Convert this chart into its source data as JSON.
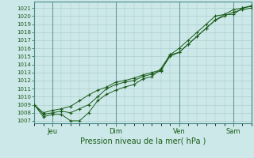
{
  "title": "Pression niveau de la mer( hPa )",
  "ylabel_ticks": [
    1007,
    1008,
    1009,
    1010,
    1011,
    1012,
    1013,
    1014,
    1015,
    1016,
    1017,
    1018,
    1019,
    1020,
    1021
  ],
  "ylim": [
    1006.7,
    1021.8
  ],
  "x_tick_labels": [
    "Jeu",
    "Dim",
    "Ven",
    "Sam"
  ],
  "x_tick_positions": [
    8,
    36,
    64,
    88
  ],
  "xlim": [
    0,
    96
  ],
  "background_color": "#cce8e8",
  "grid_color": "#a8c8c8",
  "day_line_color": "#6a9a9a",
  "line_color": "#1a5c1a",
  "marker_color": "#1a5c1a",
  "line1_x": [
    0,
    4,
    8,
    12,
    16,
    20,
    24,
    28,
    32,
    36,
    40,
    44,
    48,
    52,
    56,
    60,
    64,
    68,
    72,
    76,
    80,
    84,
    88,
    92,
    96
  ],
  "line1_y": [
    1009.0,
    1007.5,
    1007.8,
    1007.8,
    1007.0,
    1007.0,
    1008.0,
    1009.5,
    1010.3,
    1010.8,
    1011.2,
    1011.5,
    1012.2,
    1012.5,
    1013.5,
    1015.2,
    1015.5,
    1016.5,
    1017.5,
    1018.5,
    1019.5,
    1020.2,
    1020.2,
    1021.0,
    1021.2
  ],
  "line2_x": [
    0,
    4,
    8,
    12,
    16,
    20,
    24,
    28,
    32,
    36,
    40,
    44,
    48,
    52,
    56,
    60,
    64,
    68,
    72,
    76,
    80,
    84,
    88,
    92,
    96
  ],
  "line2_y": [
    1009.0,
    1008.0,
    1008.3,
    1008.5,
    1008.8,
    1009.5,
    1010.2,
    1010.8,
    1011.2,
    1011.8,
    1012.0,
    1012.3,
    1012.7,
    1013.0,
    1013.3,
    1015.0,
    1015.5,
    1016.5,
    1017.5,
    1018.5,
    1019.5,
    1020.0,
    1020.5,
    1020.8,
    1021.0
  ],
  "line3_x": [
    0,
    4,
    8,
    12,
    16,
    20,
    24,
    28,
    32,
    36,
    40,
    44,
    48,
    52,
    56,
    60,
    64,
    68,
    72,
    76,
    80,
    84,
    88,
    92,
    96
  ],
  "line3_y": [
    1009.0,
    1007.8,
    1008.0,
    1008.2,
    1008.0,
    1008.5,
    1009.0,
    1010.0,
    1011.0,
    1011.5,
    1011.8,
    1012.0,
    1012.5,
    1012.8,
    1013.2,
    1015.2,
    1016.0,
    1017.0,
    1018.0,
    1019.0,
    1020.0,
    1020.2,
    1020.8,
    1021.0,
    1021.3
  ],
  "figsize": [
    3.2,
    2.0
  ],
  "dpi": 100
}
